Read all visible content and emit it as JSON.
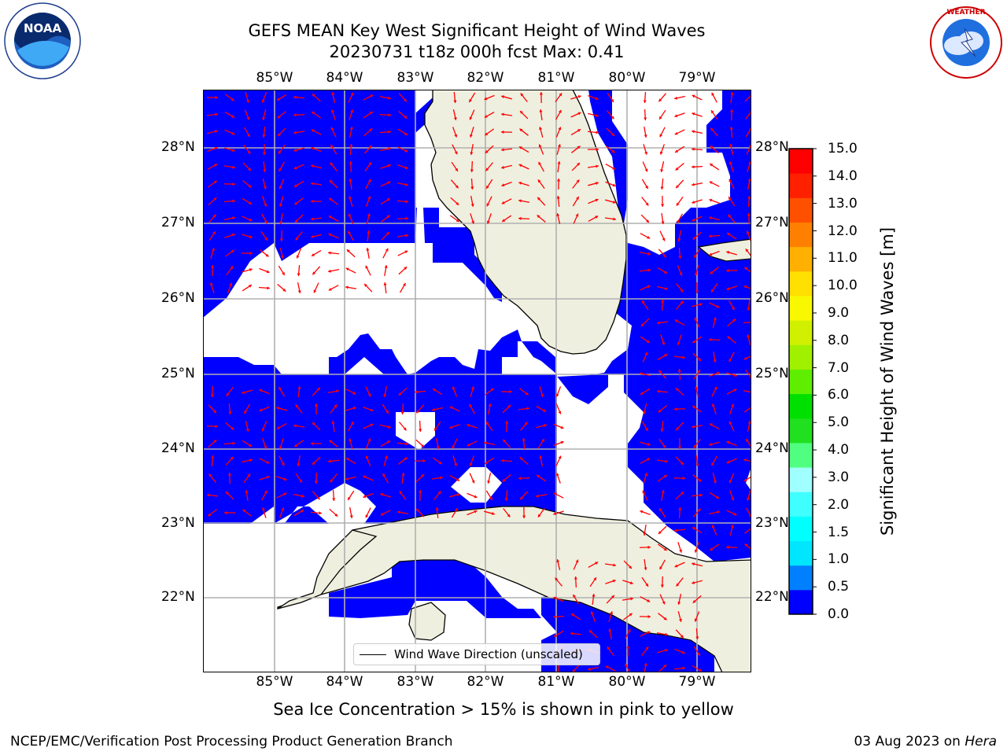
{
  "title": {
    "line1": "GEFS MEAN Key West Significant Height of Wind Waves",
    "line2": "20230731 t18z 000h fcst   Max: 0.41"
  },
  "logos": {
    "left": {
      "icon": "noaa-logo",
      "text": "NOAA",
      "ring_text": "NATIONAL OCEANIC AND ATMOSPHERIC ADMINISTRATION · U.S. DEPARTMENT OF COMMERCE"
    },
    "right": {
      "icon": "nws-logo",
      "ring_text": "NATIONAL WEATHER SERVICE"
    }
  },
  "map": {
    "lon_labels": [
      "85°W",
      "84°W",
      "83°W",
      "82°W",
      "81°W",
      "80°W",
      "79°W"
    ],
    "lat_labels": [
      "28°N",
      "27°N",
      "26°N",
      "25°N",
      "24°N",
      "23°N",
      "22°N"
    ],
    "colors": {
      "ocean_fill": "#0000ff",
      "land": "#efefdf",
      "arrows": "#ff0000",
      "grid": "#b0b0b0",
      "coast": "#000000"
    },
    "legend_label": "Wind Wave Direction (unscaled)"
  },
  "colorbar": {
    "label": "Significant Height of Wind Waves [m]",
    "ticks": [
      "15.0",
      "14.0",
      "13.0",
      "12.0",
      "11.0",
      "10.0",
      "9.0",
      "8.0",
      "7.0",
      "6.0",
      "5.0",
      "4.0",
      "3.0",
      "2.0",
      "1.5",
      "1.0",
      "0.5",
      "0.0"
    ],
    "colors": [
      "#0000ff",
      "#0080ff",
      "#00e6ff",
      "#00ffff",
      "#40ffff",
      "#a0ffff",
      "#50ff80",
      "#20e020",
      "#00e000",
      "#60ee00",
      "#a0f000",
      "#d0f000",
      "#f8f800",
      "#ffe000",
      "#ffb000",
      "#ff8000",
      "#ff5000",
      "#ff2000",
      "#ff0000"
    ]
  },
  "caption": "Sea Ice Concentration > 15% is shown in pink to yellow",
  "footer": {
    "left": "NCEP/EMC/Verification Post Processing Product Generation Branch",
    "right_date": "03 Aug 2023 on ",
    "right_machine": "Hera"
  }
}
